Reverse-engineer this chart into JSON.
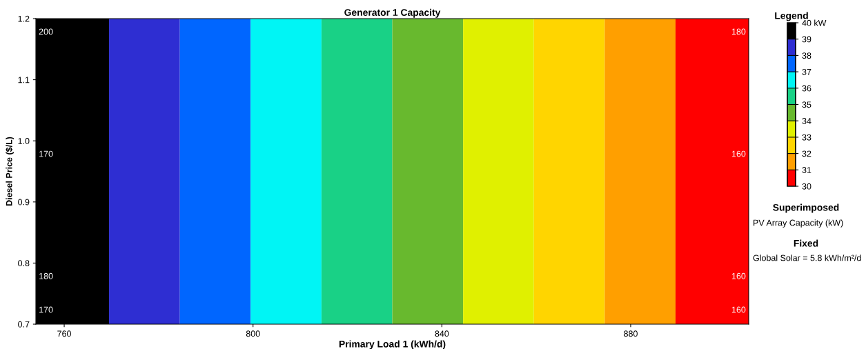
{
  "chart_data": {
    "type": "heatmap",
    "title": "Generator 1 Capacity",
    "xlabel": "Primary Load 1 (kWh/d)",
    "ylabel": "Diesel Price ($/L)",
    "clabel": "Legend",
    "x": [
      762,
      777,
      792,
      807,
      822,
      837,
      852,
      867,
      882,
      897
    ],
    "cells": [
      [
        39.5,
        38.5,
        37.5,
        36.5,
        35.5,
        34.5,
        33.5,
        32.5,
        31.5,
        30.5
      ]
    ],
    "colors": [
      "#ff0000",
      "#ff9f00",
      "#ffd500",
      "#e0f000",
      "#68b92e",
      "#19d186",
      "#00f5f5",
      "#0066ff",
      "#2e2ed2",
      "#000000"
    ],
    "clim": [
      30,
      40
    ],
    "cticks": [
      30,
      31,
      32,
      33,
      34,
      35,
      36,
      37,
      38,
      39,
      {
        "value": 40,
        "label": "40 kW"
      }
    ],
    "xlim": [
      754,
      905
    ],
    "ylim": [
      0.7,
      1.2
    ],
    "xticks": [
      760,
      800,
      840,
      880
    ],
    "yticks": [
      {
        "value": 0.7,
        "label": "0.7"
      },
      {
        "value": 0.8,
        "label": "0.8"
      },
      {
        "value": 0.9,
        "label": "0.9"
      },
      {
        "value": 1.0,
        "label": "1.0"
      },
      {
        "value": 1.1,
        "label": "1.1"
      },
      {
        "value": 1.2,
        "label": "1.2"
      }
    ],
    "grid": false,
    "annotations": [
      "200",
      "170",
      "180",
      "170",
      "180",
      "160",
      "160",
      "160",
      "Superimposed",
      "PV Array Capacity (kW)",
      "Fixed",
      "Global Solar = 5.8 kWh/m²/d"
    ]
  }
}
